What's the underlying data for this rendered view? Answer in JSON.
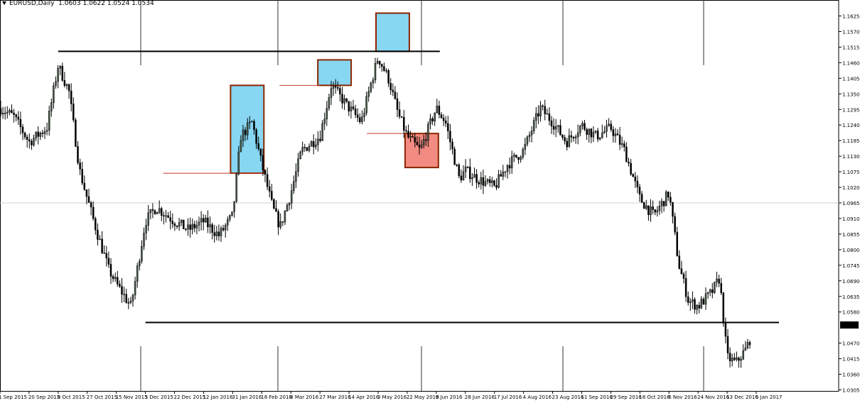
{
  "header": {
    "symbol_label": "EURUSD,Daily",
    "ohlc": "1.0603 1.0622 1.0524 1.0534"
  },
  "colors": {
    "background": "#ffffff",
    "candle": "#000000",
    "candle_bull_fill": "#4a5a4a",
    "blue_zone": "#87d6f2",
    "red_zone": "#f28b82",
    "zone_border": "#8b2500",
    "thin_line": "#c0392b",
    "price_tag_bg": "#000000",
    "price_tag_fg": "#ffffff"
  },
  "chart_data": {
    "type": "candlestick",
    "title": "EURUSD,Daily",
    "ylim": [
      1.03,
      1.168
    ],
    "y_ticks": [
      "1.1625",
      "1.1570",
      "1.1515",
      "1.1460",
      "1.1405",
      "1.1350",
      "1.1295",
      "1.1240",
      "1.1185",
      "1.1130",
      "1.1075",
      "1.1020",
      "1.0965",
      "1.0910",
      "1.0855",
      "1.0800",
      "1.0745",
      "1.0690",
      "1.0635",
      "1.0580",
      "1.0534",
      "1.0470",
      "1.0415",
      "1.0360",
      "1.0305"
    ],
    "x_labels": [
      "1 Sep 2015",
      "20 Sep 2015",
      "8 Oct 2015",
      "27 Oct 2015",
      "15 Nov 2015",
      "3 Dec 2015",
      "22 Dec 2015",
      "12 Jan 2016",
      "31 Jan 2016",
      "18 Feb 2016",
      "8 Mar 2016",
      "27 Mar 2016",
      "14 Apr 2016",
      "3 May 2016",
      "22 May 2016",
      "9 Jun 2016",
      "28 Jun 2016",
      "17 Jul 2016",
      "4 Aug 2016",
      "23 Aug 2016",
      "11 Sep 2016",
      "29 Sep 2016",
      "18 Oct 2016",
      "6 Nov 2016",
      "24 Nov 2016",
      "13 Dec 2016",
      "5 Jan 2017"
    ],
    "current_price": "1.0534",
    "horizontal_levels": [
      1.15,
      1.0543
    ],
    "zones": [
      {
        "color": "blue",
        "from": "31 Jan 2016",
        "to": "18 Feb 2016",
        "low": 1.107,
        "high": 1.138
      },
      {
        "color": "blue",
        "from": "27 Mar 2016",
        "to": "14 Apr 2016",
        "low": 1.138,
        "high": 1.147
      },
      {
        "color": "blue",
        "from": "3 May 2016",
        "to": "22 May 2016",
        "low": 1.15,
        "high": 1.1635
      },
      {
        "color": "red",
        "from": "22 May 2016",
        "to": "9 Jun 2016",
        "low": 1.109,
        "high": 1.121
      }
    ],
    "close_path": [
      [
        "1 Sep 2015",
        1.13
      ],
      [
        "10 Sep 2015",
        1.127
      ],
      [
        "20 Sep 2015",
        1.118
      ],
      [
        "1 Oct 2015",
        1.123
      ],
      [
        "8 Oct 2015",
        1.145
      ],
      [
        "15 Oct 2015",
        1.136
      ],
      [
        "22 Oct 2015",
        1.108
      ],
      [
        "27 Oct 2015",
        1.098
      ],
      [
        "3 Nov 2015",
        1.085
      ],
      [
        "10 Nov 2015",
        1.073
      ],
      [
        "15 Nov 2015",
        1.068
      ],
      [
        "24 Nov 2015",
        1.06
      ],
      [
        "3 Dec 2015",
        1.09
      ],
      [
        "10 Dec 2015",
        1.095
      ],
      [
        "22 Dec 2015",
        1.09
      ],
      [
        "1 Jan 2016",
        1.087
      ],
      [
        "12 Jan 2016",
        1.09
      ],
      [
        "22 Jan 2016",
        1.085
      ],
      [
        "31 Jan 2016",
        1.092
      ],
      [
        "5 Feb 2016",
        1.12
      ],
      [
        "12 Feb 2016",
        1.125
      ],
      [
        "18 Feb 2016",
        1.11
      ],
      [
        "25 Feb 2016",
        1.095
      ],
      [
        "1 Mar 2016",
        1.088
      ],
      [
        "8 Mar 2016",
        1.1
      ],
      [
        "15 Mar 2016",
        1.115
      ],
      [
        "27 Mar 2016",
        1.12
      ],
      [
        "3 Apr 2016",
        1.138
      ],
      [
        "14 Apr 2016",
        1.13
      ],
      [
        "22 Apr 2016",
        1.125
      ],
      [
        "28 Apr 2016",
        1.138
      ],
      [
        "3 May 2016",
        1.148
      ],
      [
        "10 May 2016",
        1.14
      ],
      [
        "16 May 2016",
        1.128
      ],
      [
        "22 May 2016",
        1.12
      ],
      [
        "30 May 2016",
        1.115
      ],
      [
        "9 Jun 2016",
        1.13
      ],
      [
        "15 Jun 2016",
        1.125
      ],
      [
        "24 Jun 2016",
        1.105
      ],
      [
        "28 Jun 2016",
        1.108
      ],
      [
        "6 Jul 2016",
        1.105
      ],
      [
        "17 Jul 2016",
        1.102
      ],
      [
        "25 Jul 2016",
        1.11
      ],
      [
        "4 Aug 2016",
        1.115
      ],
      [
        "15 Aug 2016",
        1.13
      ],
      [
        "23 Aug 2016",
        1.125
      ],
      [
        "1 Sep 2016",
        1.118
      ],
      [
        "11 Sep 2016",
        1.124
      ],
      [
        "20 Sep 2016",
        1.12
      ],
      [
        "29 Sep 2016",
        1.123
      ],
      [
        "8 Oct 2016",
        1.115
      ],
      [
        "18 Oct 2016",
        1.098
      ],
      [
        "27 Oct 2016",
        1.092
      ],
      [
        "6 Nov 2016",
        1.1
      ],
      [
        "12 Nov 2016",
        1.075
      ],
      [
        "18 Nov 2016",
        1.062
      ],
      [
        "24 Nov 2016",
        1.06
      ],
      [
        "3 Dec 2016",
        1.065
      ],
      [
        "8 Dec 2016",
        1.07
      ],
      [
        "13 Dec 2016",
        1.042
      ],
      [
        "20 Dec 2016",
        1.04
      ],
      [
        "28 Dec 2016",
        1.045
      ],
      [
        "5 Jan 2017",
        1.054
      ]
    ]
  }
}
